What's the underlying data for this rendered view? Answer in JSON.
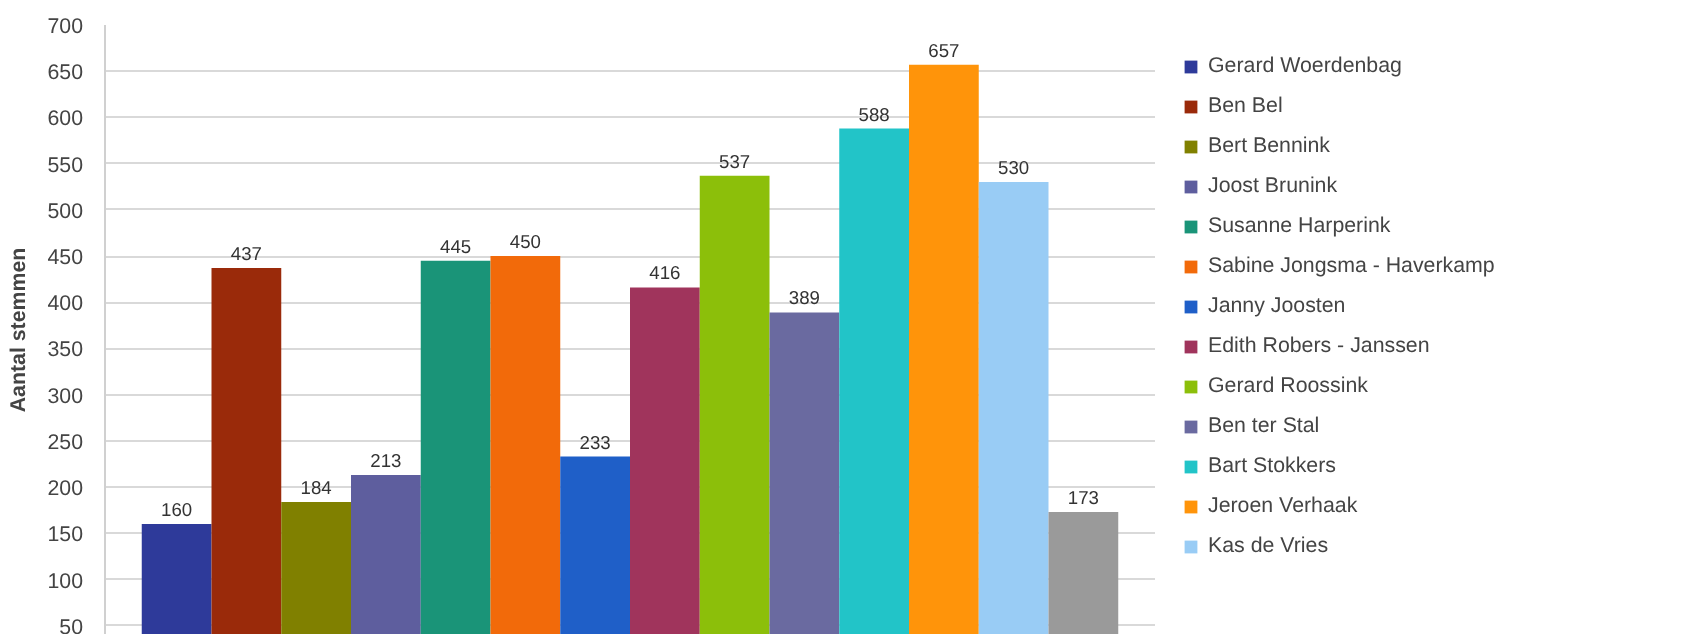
{
  "chart_data": {
    "type": "bar",
    "ylabel": "Aantal stemmen",
    "categories": [
      null
    ],
    "series": [
      {
        "name": "Gerard Woerdenbag",
        "color": "#2e3a9a",
        "values": [
          160
        ]
      },
      {
        "name": "Ben Bel",
        "color": "#9a2a0a",
        "values": [
          437
        ]
      },
      {
        "name": "Bert Bennink",
        "color": "#808000",
        "values": [
          184
        ]
      },
      {
        "name": "Joost Brunink",
        "color": "#5e5e9e",
        "values": [
          213
        ]
      },
      {
        "name": "Susanne Harperink",
        "color": "#1a9478",
        "values": [
          445
        ]
      },
      {
        "name": "Sabine Jongsma - Haverkamp",
        "color": "#f26a0a",
        "values": [
          450
        ]
      },
      {
        "name": "Janny Joosten",
        "color": "#1f5fc8",
        "values": [
          233
        ]
      },
      {
        "name": "Edith Robers - Janssen",
        "color": "#a0345c",
        "values": [
          416
        ]
      },
      {
        "name": "Gerard Roossink",
        "color": "#8cbf0a",
        "values": [
          537
        ]
      },
      {
        "name": "Ben ter Stal",
        "color": "#6a6aa0",
        "values": [
          389
        ]
      },
      {
        "name": "Bart Stokkers",
        "color": "#22c4c8",
        "values": [
          588
        ]
      },
      {
        "name": "Jeroen Verhaak",
        "color": "#ff940a",
        "values": [
          657
        ]
      },
      {
        "name": "Kas de Vries",
        "color": "#99ccf5",
        "values": [
          530
        ]
      },
      {
        "color": "#9a9a9a",
        "values": [
          173
        ]
      }
    ],
    "ylim": [
      40,
      700
    ],
    "yticks": [
      50,
      100,
      150,
      200,
      250,
      300,
      350,
      400,
      450,
      500,
      550,
      600,
      650,
      700
    ],
    "grid": "y",
    "legend": "right",
    "data_labels": true
  }
}
